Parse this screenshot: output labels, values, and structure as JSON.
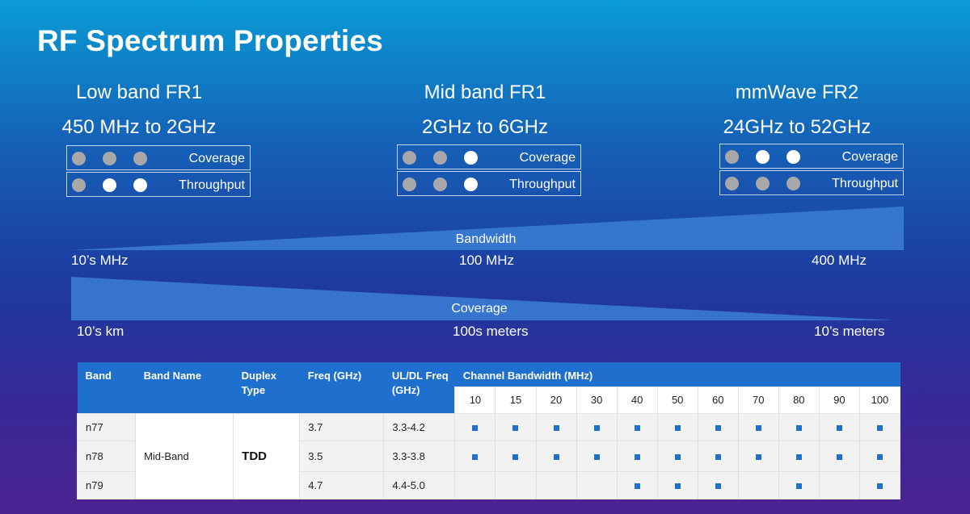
{
  "title": "RF Spectrum Properties",
  "bands": [
    {
      "name": "Low band FR1",
      "range": "450 MHz to 2GHz",
      "coverage": [
        false,
        false,
        false
      ],
      "throughput": [
        false,
        true,
        true
      ]
    },
    {
      "name": "Mid band FR1",
      "range": "2GHz to 6GHz",
      "coverage": [
        false,
        false,
        true
      ],
      "throughput": [
        false,
        false,
        true
      ]
    },
    {
      "name": "mmWave FR2",
      "range": "24GHz to 52GHz",
      "coverage": [
        false,
        true,
        true
      ],
      "throughput": [
        false,
        false,
        false
      ]
    }
  ],
  "labels": {
    "coverage": "Coverage",
    "throughput": "Throughput"
  },
  "bandwidth": {
    "label": "Bandwidth",
    "ticks": [
      "10’s MHz",
      "100 MHz",
      "400 MHz"
    ]
  },
  "coverage_scale": {
    "label": "Coverage",
    "ticks": [
      "10’s km",
      "100s meters",
      "10’s meters"
    ]
  },
  "table": {
    "headers": {
      "band": "Band",
      "band_name": "Band Name",
      "duplex": "Duplex Type",
      "freq": "Freq (GHz)",
      "uldl": "UL/DL Freq (GHz)",
      "channel_bw": "Channel Bandwidth (MHz)"
    },
    "bw_columns": [
      "10",
      "15",
      "20",
      "30",
      "40",
      "50",
      "60",
      "70",
      "80",
      "90",
      "100"
    ],
    "band_name": "Mid-Band",
    "duplex": "TDD",
    "rows": [
      {
        "band": "n77",
        "freq": "3.7",
        "uldl": "3.3-4.2",
        "support": [
          true,
          true,
          true,
          true,
          true,
          true,
          true,
          true,
          true,
          true,
          true
        ]
      },
      {
        "band": "n78",
        "freq": "3.5",
        "uldl": "3.3-3.8",
        "support": [
          true,
          true,
          true,
          true,
          true,
          true,
          true,
          true,
          true,
          true,
          true
        ]
      },
      {
        "band": "n79",
        "freq": "4.7",
        "uldl": "4.4-5.0",
        "support": [
          false,
          false,
          false,
          false,
          true,
          true,
          true,
          false,
          true,
          false,
          true
        ]
      }
    ]
  },
  "colors": {
    "dot_on": "#ffffff",
    "dot_off": "#a8a8a8",
    "table_header": "#1f6fce",
    "wedge": "#3b7fd6"
  }
}
